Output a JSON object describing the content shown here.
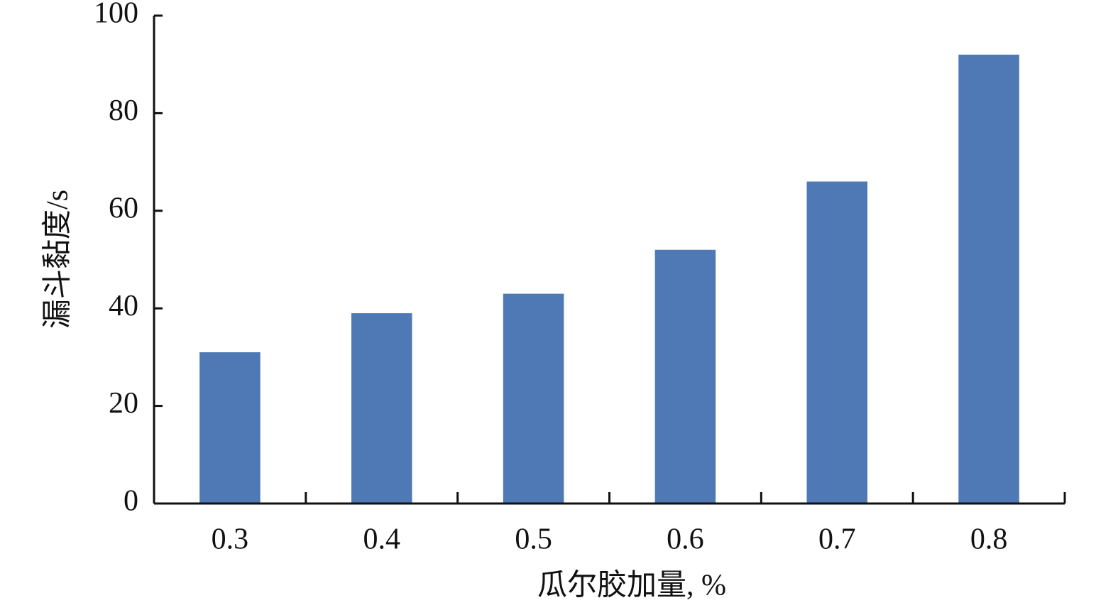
{
  "chart_data": {
    "type": "bar",
    "x_label": "瓜尔胶加量, %",
    "y_label": "漏斗黏度/s",
    "categories": [
      "0.3",
      "0.4",
      "0.5",
      "0.6",
      "0.7",
      "0.8"
    ],
    "values": [
      31,
      39,
      43,
      52,
      66,
      92
    ],
    "color": "#4f79b5",
    "ylim": [
      0,
      100
    ],
    "yticks": [
      0,
      20,
      40,
      60,
      80,
      100
    ],
    "grid": false
  }
}
